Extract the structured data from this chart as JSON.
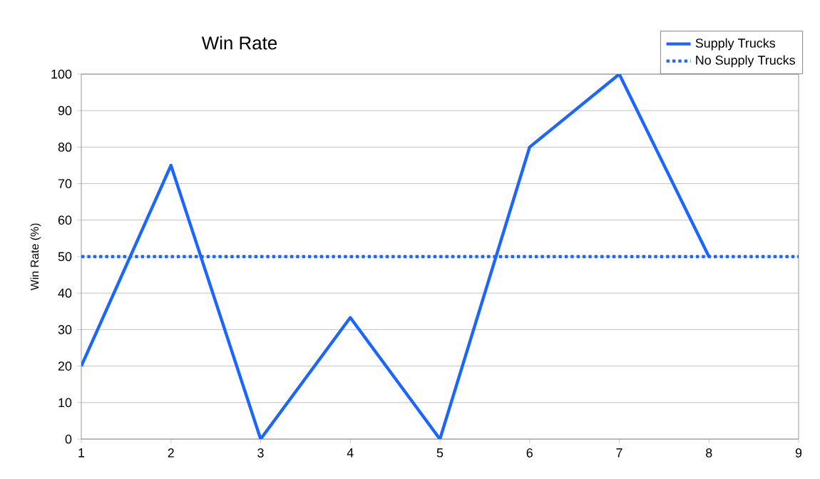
{
  "chart_data": {
    "type": "line",
    "title": "Win Rate",
    "ylabel": "Win Rate (%)",
    "series": [
      {
        "name": "Supply Trucks",
        "color": "#1a66ff",
        "line_style": "solid",
        "x": [
          1,
          2,
          3,
          4,
          5,
          6,
          7,
          8
        ],
        "values": [
          20,
          75,
          0,
          33.3,
          0,
          80,
          100,
          50
        ]
      },
      {
        "name": "No Supply Trucks",
        "color": "#1a66ff",
        "line_style": "dotted",
        "x": [
          1,
          9
        ],
        "values": [
          50,
          50
        ]
      }
    ],
    "xlim": [
      1,
      9
    ],
    "xticks": [
      1,
      2,
      3,
      4,
      5,
      6,
      7,
      8,
      9
    ],
    "ylim": [
      0,
      100
    ],
    "yticks": [
      0,
      10,
      20,
      30,
      40,
      50,
      60,
      70,
      80,
      90,
      100
    ],
    "grid": "y",
    "legend": "top right",
    "marker": "none"
  }
}
